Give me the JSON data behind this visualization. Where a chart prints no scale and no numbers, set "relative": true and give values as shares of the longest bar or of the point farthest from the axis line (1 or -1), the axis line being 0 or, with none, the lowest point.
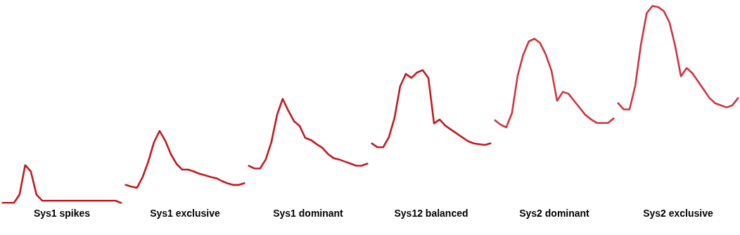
{
  "chart_data": [
    {
      "type": "line",
      "relative": true,
      "xlabel": "Sys1 spikes",
      "categories": [
        null,
        null,
        null,
        null,
        null,
        null,
        null,
        null,
        null,
        null,
        null,
        null,
        null,
        null,
        null,
        null,
        null,
        null,
        null,
        null,
        null,
        null
      ],
      "series": [
        {
          "color": "#c41a1f",
          "values": [
            0,
            0,
            0,
            0.22,
            1,
            0.83,
            0.22,
            0.06,
            0.06,
            0.06,
            0.06,
            0.06,
            0.06,
            0.06,
            0.06,
            0.06,
            0.06,
            0.06,
            0.06,
            0.06,
            0.06,
            0
          ]
        }
      ]
    },
    {
      "type": "line",
      "relative": true,
      "xlabel": "Sys1 exclusive",
      "categories": [
        null,
        null,
        null,
        null,
        null,
        null,
        null,
        null,
        null,
        null,
        null,
        null,
        null,
        null,
        null,
        null,
        null,
        null,
        null,
        null,
        null,
        null
      ],
      "series": [
        {
          "color": "#c41a1f",
          "values": [
            0.05,
            0.02,
            0,
            0.19,
            0.46,
            0.8,
            1,
            0.83,
            0.59,
            0.42,
            0.32,
            0.32,
            0.29,
            0.25,
            0.22,
            0.19,
            0.17,
            0.12,
            0.08,
            0.05,
            0.05,
            0.08
          ]
        }
      ]
    },
    {
      "type": "line",
      "relative": true,
      "xlabel": "Sys1 dominant",
      "categories": [
        null,
        null,
        null,
        null,
        null,
        null,
        null,
        null,
        null,
        null,
        null,
        null,
        null,
        null,
        null,
        null,
        null,
        null,
        null,
        null,
        null,
        null
      ],
      "series": [
        {
          "color": "#c41a1f",
          "values": [
            0.04,
            0,
            0,
            0.13,
            0.38,
            0.77,
            1,
            0.83,
            0.68,
            0.61,
            0.44,
            0.41,
            0.35,
            0.3,
            0.21,
            0.15,
            0.13,
            0.1,
            0.07,
            0.04,
            0.04,
            0.07
          ]
        }
      ]
    },
    {
      "type": "line",
      "relative": true,
      "xlabel": "Sys12 balanced",
      "categories": [
        null,
        null,
        null,
        null,
        null,
        null,
        null,
        null,
        null,
        null,
        null,
        null,
        null,
        null,
        null,
        null,
        null,
        null,
        null,
        null,
        null,
        null
      ],
      "series": [
        {
          "color": "#c41a1f",
          "values": [
            0.05,
            0,
            0,
            0.13,
            0.38,
            0.79,
            0.95,
            0.9,
            0.97,
            1,
            0.9,
            0.31,
            0.36,
            0.28,
            0.23,
            0.18,
            0.13,
            0.08,
            0.05,
            0.04,
            0.03,
            0.05
          ]
        }
      ]
    },
    {
      "type": "line",
      "relative": true,
      "xlabel": "Sys2 dominant",
      "categories": [
        null,
        null,
        null,
        null,
        null,
        null,
        null,
        null,
        null,
        null,
        null,
        null,
        null,
        null,
        null,
        null,
        null,
        null,
        null,
        null,
        null,
        null
      ],
      "series": [
        {
          "color": "#d0343e",
          "values": [
            0.08,
            0.03,
            0,
            0.16,
            0.58,
            0.82,
            0.97,
            1,
            0.95,
            0.82,
            0.64,
            0.3,
            0.4,
            0.38,
            0.3,
            0.22,
            0.14,
            0.09,
            0.05,
            0.05,
            0.05,
            0.1
          ]
        }
      ]
    },
    {
      "type": "line",
      "relative": true,
      "xlabel": "Sys2 exclusive",
      "categories": [
        null,
        null,
        null,
        null,
        null,
        null,
        null,
        null,
        null,
        null,
        null,
        null,
        null,
        null,
        null,
        null,
        null,
        null,
        null,
        null,
        null,
        null
      ],
      "series": [
        {
          "color": "#d0343e",
          "values": [
            0.06,
            0,
            0,
            0.23,
            0.63,
            0.93,
            1,
            0.99,
            0.95,
            0.84,
            0.61,
            0.32,
            0.4,
            0.35,
            0.27,
            0.19,
            0.11,
            0.06,
            0.04,
            0.02,
            0.04,
            0.11
          ]
        }
      ]
    }
  ]
}
